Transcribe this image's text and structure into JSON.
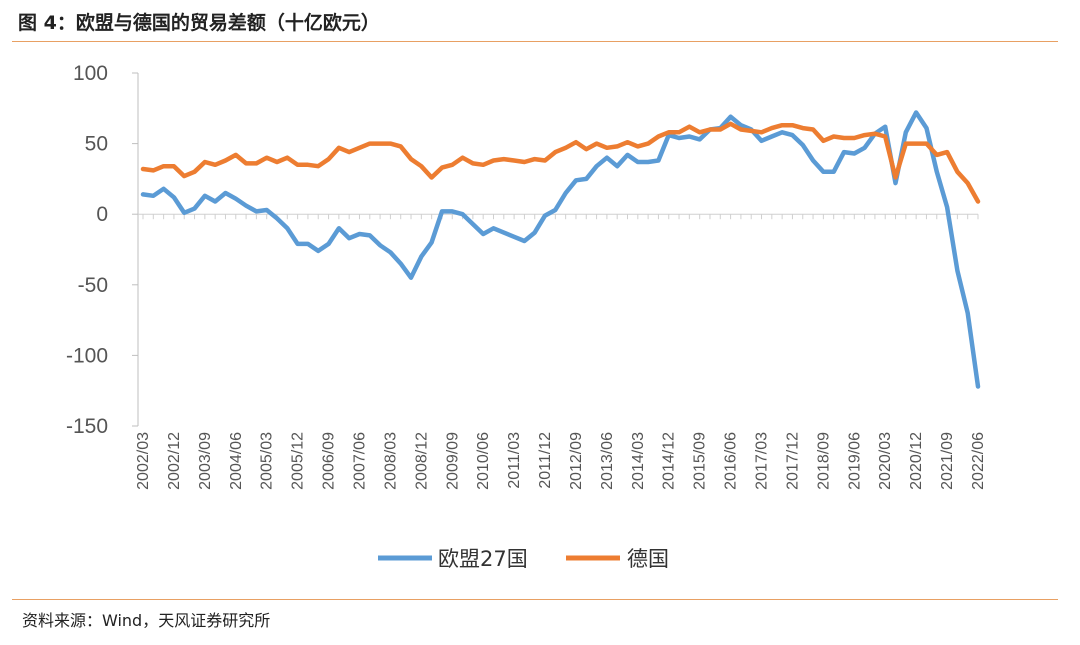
{
  "header": {
    "title": "图 4：欧盟与德国的贸易差额（十亿欧元）"
  },
  "footer": {
    "source": "资料来源：Wind，天风证券研究所"
  },
  "chart_data": {
    "type": "line",
    "title": "图 4：欧盟与德国的贸易差额（十亿欧元）",
    "xlabel": "",
    "ylabel": "",
    "ylim": [
      -150,
      100
    ],
    "yticks": [
      100,
      50,
      0,
      -50,
      -100,
      -150
    ],
    "x_start": "2002/03",
    "x_step_months": 3,
    "tick_labels": [
      "2002/03",
      "2002/12",
      "2003/09",
      "2004/06",
      "2005/03",
      "2005/12",
      "2006/09",
      "2007/06",
      "2008/03",
      "2008/12",
      "2009/09",
      "2010/06",
      "2011/03",
      "2011/12",
      "2012/09",
      "2013/06",
      "2014/03",
      "2014/12",
      "2015/09",
      "2016/06",
      "2017/03",
      "2017/12",
      "2018/09",
      "2019/06",
      "2020/03",
      "2020/12",
      "2021/09",
      "2022/06"
    ],
    "legend_position": "bottom",
    "series": [
      {
        "name": "欧盟27国",
        "color": "#5B9BD5",
        "values": [
          14,
          13,
          18,
          12,
          1,
          4,
          13,
          9,
          15,
          11,
          6,
          2,
          3,
          -3,
          -10,
          -21,
          -21,
          -26,
          -21,
          -10,
          -17,
          -14,
          -15,
          -22,
          -27,
          -35,
          -45,
          -30,
          -20,
          2,
          2,
          0,
          -7,
          -14,
          -10,
          -13,
          -16,
          -19,
          -13,
          -1,
          3,
          15,
          24,
          25,
          34,
          40,
          34,
          42,
          37,
          37,
          38,
          56,
          54,
          55,
          53,
          60,
          61,
          69,
          63,
          60,
          52,
          55,
          58,
          56,
          49,
          38,
          30,
          30,
          44,
          43,
          47,
          57,
          62,
          22,
          58,
          72,
          61,
          30,
          5,
          -40,
          -70,
          -122
        ]
      },
      {
        "name": "德国",
        "color": "#ED7D31",
        "values": [
          32,
          31,
          34,
          34,
          27,
          30,
          37,
          35,
          38,
          42,
          36,
          36,
          40,
          37,
          40,
          35,
          35,
          34,
          39,
          47,
          44,
          47,
          50,
          50,
          50,
          48,
          39,
          34,
          26,
          33,
          35,
          40,
          36,
          35,
          38,
          39,
          38,
          37,
          39,
          38,
          44,
          47,
          51,
          46,
          50,
          47,
          48,
          51,
          48,
          50,
          55,
          58,
          58,
          62,
          58,
          60,
          60,
          64,
          60,
          59,
          58,
          61,
          63,
          63,
          61,
          60,
          52,
          55,
          54,
          54,
          56,
          57,
          55,
          26,
          50,
          50,
          50,
          42,
          44,
          30,
          22,
          9
        ]
      }
    ]
  }
}
